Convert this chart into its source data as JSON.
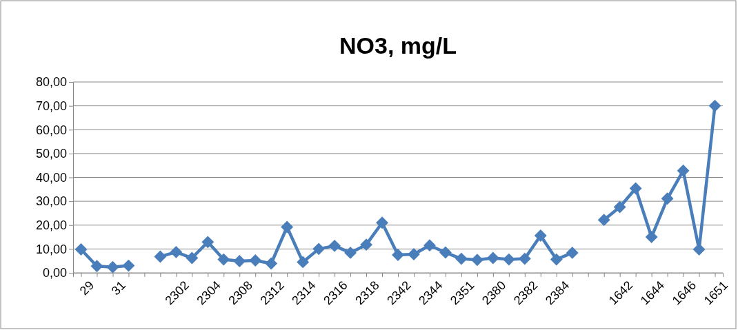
{
  "chart_data": {
    "type": "line",
    "title": "NO3, mg/L",
    "categories": [
      "29",
      null,
      "31",
      null,
      null,
      null,
      "2302",
      null,
      "2304",
      null,
      "2308",
      null,
      "2312",
      null,
      "2314",
      null,
      "2316",
      null,
      "2318",
      null,
      "2342",
      null,
      "2344",
      null,
      "2351",
      null,
      "2380",
      null,
      "2382",
      null,
      "2384",
      null,
      null,
      null,
      "1642",
      null,
      "1644",
      null,
      "1646",
      null,
      "1651"
    ],
    "series": [
      {
        "color": "#4a7ebb",
        "values": [
          9.8,
          2.8,
          2.4,
          3.0,
          null,
          6.8,
          8.7,
          6.2,
          12.9,
          5.6,
          4.9,
          5.2,
          3.9,
          19.2,
          4.5,
          10.0,
          11.3,
          8.4,
          11.8,
          21.0,
          7.5,
          7.8,
          11.5,
          8.5,
          5.9,
          5.4,
          6.2,
          5.6,
          5.9,
          15.6,
          5.6,
          8.4,
          null,
          22.2,
          27.6,
          35.4,
          15.0,
          31.1,
          42.8,
          9.8,
          70.0
        ]
      }
    ],
    "ylim": [
      0,
      80
    ],
    "yticks": [
      {
        "value": 0,
        "label": "0,00"
      },
      {
        "value": 10,
        "label": "10,00"
      },
      {
        "value": 20,
        "label": "20,00"
      },
      {
        "value": 30,
        "label": "30,00"
      },
      {
        "value": 40,
        "label": "40,00"
      },
      {
        "value": 50,
        "label": "50,00"
      },
      {
        "value": 60,
        "label": "60,00"
      },
      {
        "value": 70,
        "label": "70,00"
      },
      {
        "value": 80,
        "label": "80,00"
      }
    ],
    "grid": "y",
    "marker": "diamond",
    "line_style": "solid"
  }
}
